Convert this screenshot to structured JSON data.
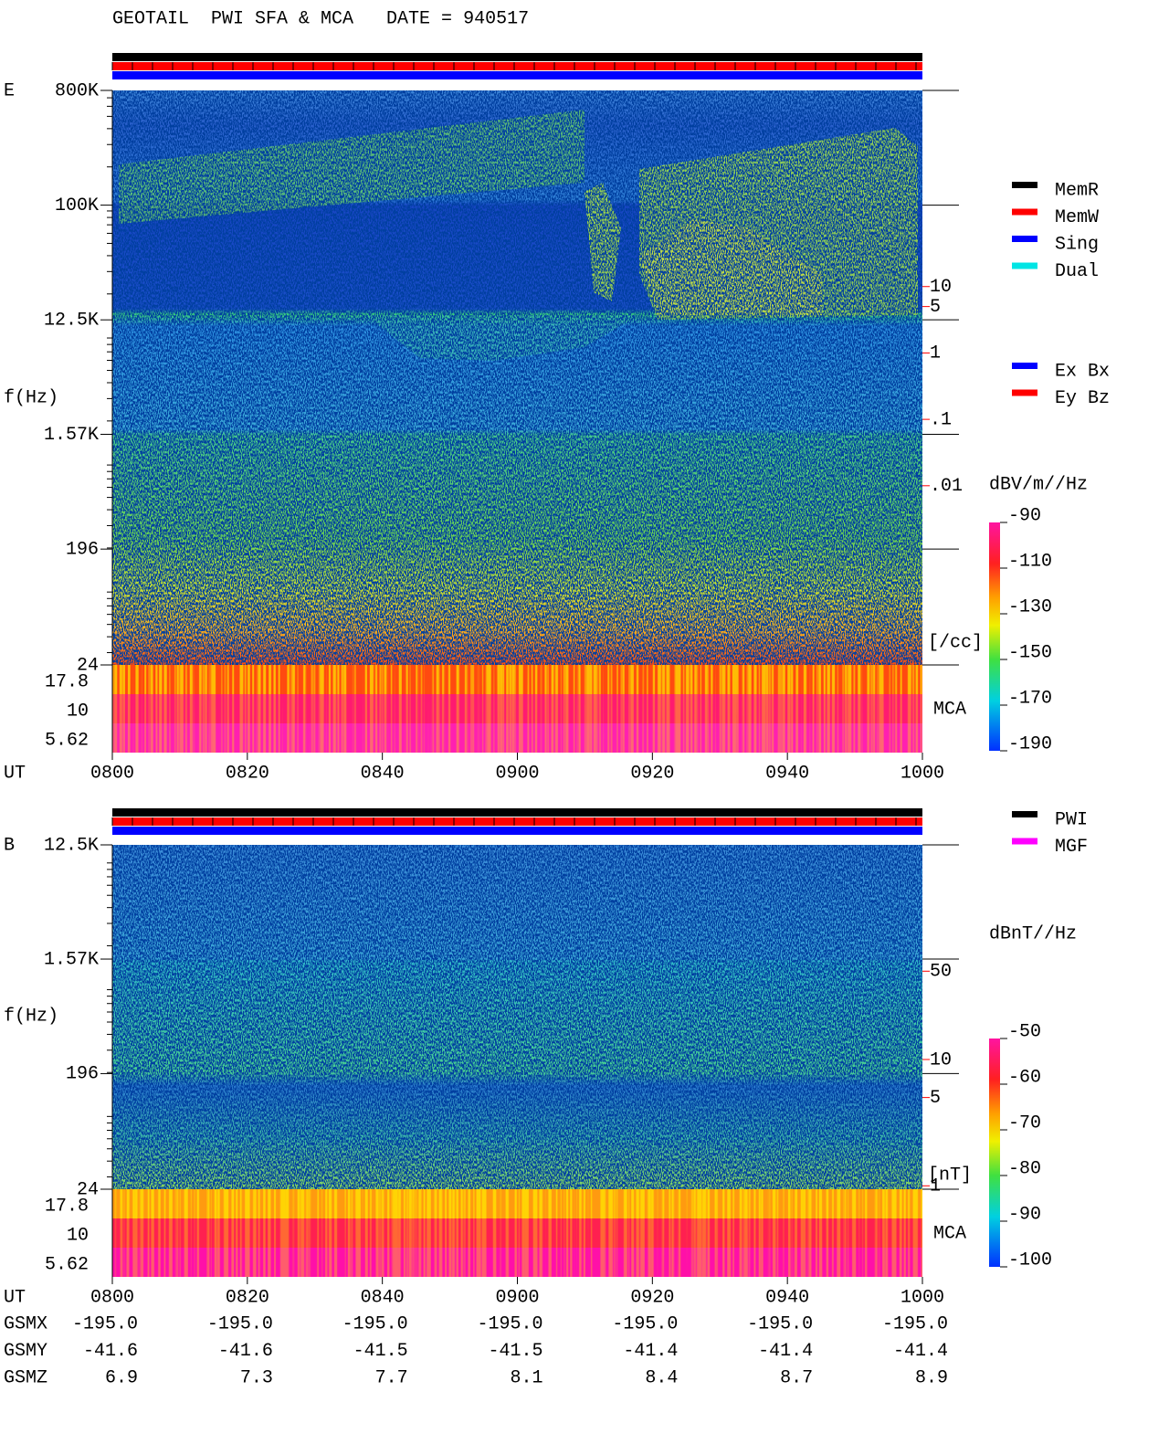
{
  "title": "GEOTAIL  PWI SFA & MCA   DATE = 940517",
  "chart_data": [
    {
      "type": "spectrogram",
      "panel_label": "E",
      "y_label": "f(Hz)",
      "x_label": "UT",
      "log_y": true,
      "ylim": [
        24,
        800000
      ],
      "yticks": [
        {
          "value": 800000,
          "label": "800K"
        },
        {
          "value": 100000,
          "label": "100K"
        },
        {
          "value": 12500,
          "label": "12.5K"
        },
        {
          "value": 1570,
          "label": "1.57K"
        },
        196,
        24
      ],
      "mca_label": "MCA",
      "mca_channels": [
        17.8,
        10,
        5.62
      ],
      "xticks": [
        "0800",
        "0820",
        "0840",
        "0900",
        "0920",
        "0940",
        "1000"
      ],
      "y2lim": [
        2e-05,
        9000
      ],
      "y2ticks": [
        10,
        5,
        1,
        {
          "value": 0.1,
          "label": ".1"
        },
        {
          "value": 0.01,
          "label": ".01"
        }
      ],
      "y2_label": "[/cc]",
      "y2_color": "#ff0000",
      "colorbar": {
        "label": "dBV/m//Hz",
        "clim": [
          -190,
          -90
        ],
        "ticks": [
          -90,
          -110,
          -130,
          -150,
          -170,
          -190
        ]
      },
      "legends": [
        [
          {
            "name": "MemR",
            "color": "#000000"
          },
          {
            "name": "MemW",
            "color": "#ff0000"
          },
          {
            "name": "Sing",
            "color": "#0000ff"
          },
          {
            "name": "Dual",
            "color": "#00e5e5"
          }
        ],
        [
          {
            "name": "Ex Bx",
            "color": "#0000ff"
          },
          {
            "name": "Ey Bz",
            "color": "#ff0000"
          }
        ]
      ]
    },
    {
      "type": "spectrogram",
      "panel_label": "B",
      "y_label": "f(Hz)",
      "x_label": "UT",
      "log_y": true,
      "ylim": [
        24,
        12500
      ],
      "yticks": [
        {
          "value": 12500,
          "label": "12.5K"
        },
        {
          "value": 1570,
          "label": "1.57K"
        },
        196,
        24
      ],
      "mca_label": "MCA",
      "mca_channels": [
        17.8,
        10,
        5.62
      ],
      "xticks": [
        "0800",
        "0820",
        "0840",
        "0900",
        "0920",
        "0940",
        "1000"
      ],
      "y2lim": [
        0.94,
        500
      ],
      "y2ticks": [
        50,
        10,
        5,
        1
      ],
      "y2_label": "[nT]",
      "y2_color": "#ff0000",
      "colorbar": {
        "label": "dBnT//Hz",
        "clim": [
          -100,
          -50
        ],
        "ticks": [
          -50,
          -60,
          -70,
          -80,
          -90,
          -100
        ]
      },
      "legends": [
        [
          {
            "name": "PWI",
            "color": "#000000"
          },
          {
            "name": "MGF",
            "color": "#ff00ff"
          }
        ]
      ]
    }
  ],
  "ephemeris": {
    "rows": [
      {
        "name": "GSMX",
        "values": [
          "-195.0",
          "-195.0",
          "-195.0",
          "-195.0",
          "-195.0",
          "-195.0",
          "-195.0"
        ]
      },
      {
        "name": "GSMY",
        "values": [
          "-41.6",
          "-41.6",
          "-41.5",
          "-41.5",
          "-41.4",
          "-41.4",
          "-41.4"
        ]
      },
      {
        "name": "GSMZ",
        "values": [
          "6.9",
          "7.3",
          "7.7",
          "8.1",
          "8.4",
          "8.7",
          "8.9"
        ]
      }
    ]
  }
}
